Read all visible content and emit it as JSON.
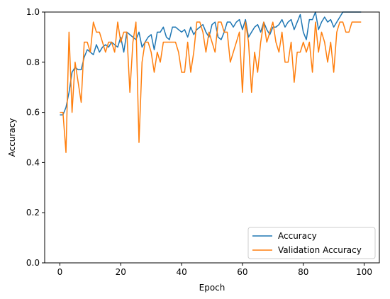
{
  "chart_data": {
    "type": "line",
    "xlabel": "Epoch",
    "ylabel": "Accuracy",
    "xlim": [
      -5,
      105
    ],
    "ylim": [
      0.0,
      1.0
    ],
    "x_ticks": [
      0,
      20,
      40,
      60,
      80,
      100
    ],
    "x_tick_labels": [
      "0",
      "20",
      "40",
      "60",
      "80",
      "100"
    ],
    "y_ticks": [
      0.0,
      0.2,
      0.4,
      0.6,
      0.8,
      1.0
    ],
    "y_tick_labels": [
      "0.0",
      "0.2",
      "0.4",
      "0.6",
      "0.8",
      "1.0"
    ],
    "grid": false,
    "legend_position": "lower-right",
    "series": [
      {
        "name": "Accuracy",
        "color": "#1f77b4",
        "x": [
          0,
          1,
          2,
          3,
          4,
          5,
          6,
          7,
          8,
          9,
          10,
          11,
          12,
          13,
          14,
          15,
          16,
          17,
          18,
          19,
          20,
          21,
          22,
          23,
          24,
          25,
          26,
          27,
          28,
          29,
          30,
          31,
          32,
          33,
          34,
          35,
          36,
          37,
          38,
          39,
          40,
          41,
          42,
          43,
          44,
          45,
          46,
          47,
          48,
          49,
          50,
          51,
          52,
          53,
          54,
          55,
          56,
          57,
          58,
          59,
          60,
          61,
          62,
          63,
          64,
          65,
          66,
          67,
          68,
          69,
          70,
          71,
          72,
          73,
          74,
          75,
          76,
          77,
          78,
          79,
          80,
          81,
          82,
          83,
          84,
          85,
          86,
          87,
          88,
          89,
          90,
          91,
          92,
          93,
          94,
          95,
          96,
          97,
          98,
          99
        ],
        "values": [
          0.59,
          0.59,
          0.62,
          0.68,
          0.76,
          0.78,
          0.77,
          0.77,
          0.82,
          0.85,
          0.84,
          0.83,
          0.87,
          0.84,
          0.86,
          0.87,
          0.86,
          0.88,
          0.87,
          0.86,
          0.9,
          0.84,
          0.92,
          0.91,
          0.9,
          0.89,
          0.92,
          0.86,
          0.88,
          0.9,
          0.91,
          0.85,
          0.92,
          0.92,
          0.94,
          0.9,
          0.89,
          0.94,
          0.94,
          0.93,
          0.92,
          0.93,
          0.9,
          0.94,
          0.91,
          0.93,
          0.94,
          0.95,
          0.92,
          0.9,
          0.95,
          0.96,
          0.9,
          0.89,
          0.92,
          0.96,
          0.96,
          0.94,
          0.96,
          0.97,
          0.93,
          0.97,
          0.9,
          0.92,
          0.94,
          0.95,
          0.92,
          0.96,
          0.93,
          0.91,
          0.94,
          0.94,
          0.95,
          0.97,
          0.94,
          0.96,
          0.97,
          0.93,
          0.96,
          0.99,
          0.92,
          0.89,
          0.97,
          0.97,
          1.0,
          0.93,
          0.96,
          0.98,
          0.96,
          0.97,
          0.94,
          0.96,
          0.98,
          1.0,
          1.0,
          1.0,
          1.0,
          1.0,
          1.0,
          1.0
        ]
      },
      {
        "name": "Validation Accuracy",
        "color": "#ff7f0e",
        "x": [
          0,
          1,
          2,
          3,
          4,
          5,
          6,
          7,
          8,
          9,
          10,
          11,
          12,
          13,
          14,
          15,
          16,
          17,
          18,
          19,
          20,
          21,
          22,
          23,
          24,
          25,
          26,
          27,
          28,
          29,
          30,
          31,
          32,
          33,
          34,
          35,
          36,
          37,
          38,
          39,
          40,
          41,
          42,
          43,
          44,
          45,
          46,
          47,
          48,
          49,
          50,
          51,
          52,
          53,
          54,
          55,
          56,
          57,
          58,
          59,
          60,
          61,
          62,
          63,
          64,
          65,
          66,
          67,
          68,
          69,
          70,
          71,
          72,
          73,
          74,
          75,
          76,
          77,
          78,
          79,
          80,
          81,
          82,
          83,
          84,
          85,
          86,
          87,
          88,
          89,
          90,
          91,
          92,
          93,
          94,
          95,
          96,
          97,
          98,
          99
        ],
        "values": [
          0.6,
          0.6,
          0.44,
          0.92,
          0.6,
          0.8,
          0.72,
          0.64,
          0.88,
          0.88,
          0.84,
          0.96,
          0.92,
          0.92,
          0.88,
          0.84,
          0.88,
          0.88,
          0.84,
          0.96,
          0.88,
          0.92,
          0.92,
          0.68,
          0.88,
          0.96,
          0.48,
          0.8,
          0.88,
          0.88,
          0.84,
          0.76,
          0.84,
          0.8,
          0.88,
          0.88,
          0.88,
          0.88,
          0.88,
          0.84,
          0.76,
          0.76,
          0.88,
          0.76,
          0.84,
          0.96,
          0.96,
          0.92,
          0.84,
          0.92,
          0.88,
          0.84,
          0.96,
          0.96,
          0.92,
          0.92,
          0.8,
          0.84,
          0.88,
          0.92,
          0.68,
          0.96,
          0.88,
          0.68,
          0.84,
          0.76,
          0.88,
          0.96,
          0.88,
          0.92,
          0.96,
          0.88,
          0.84,
          0.92,
          0.8,
          0.8,
          0.88,
          0.72,
          0.84,
          0.84,
          0.88,
          0.84,
          0.88,
          0.76,
          0.96,
          0.84,
          0.92,
          0.88,
          0.8,
          0.88,
          0.76,
          0.92,
          0.96,
          0.96,
          0.92,
          0.92,
          0.96,
          0.96,
          0.96,
          0.96
        ]
      }
    ]
  }
}
